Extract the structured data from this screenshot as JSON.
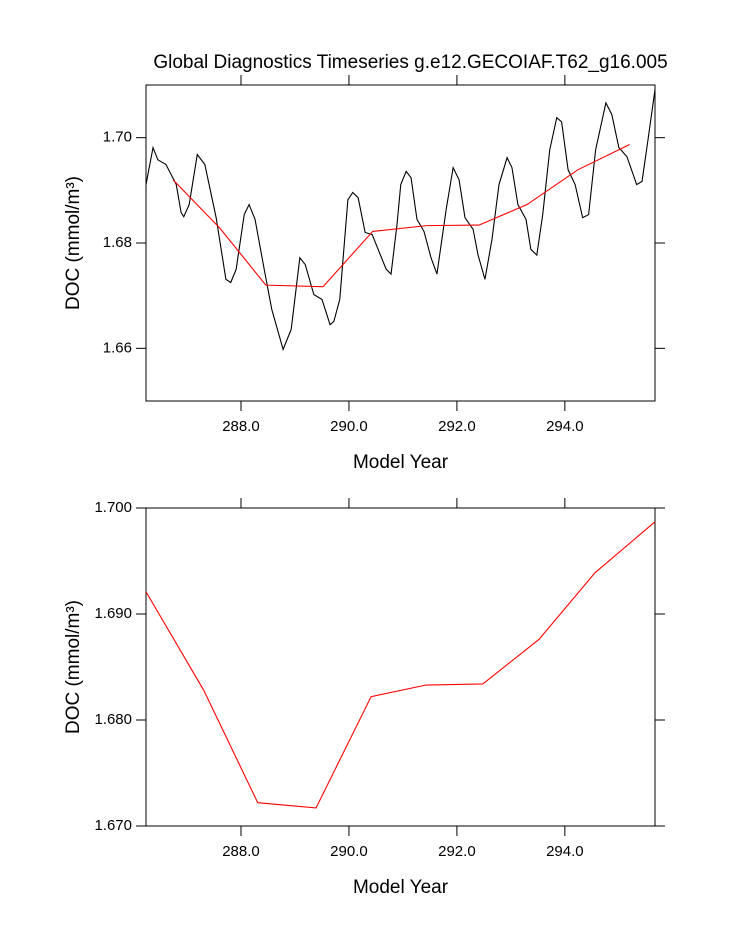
{
  "chart_data": [
    {
      "type": "line",
      "title": "Global Diagnostics Timeseries g.e12.GECOIAF.T62_g16.005",
      "xlabel": "Model Year",
      "ylabel": "DOC (mmol/m³)",
      "xlim": [
        286.24,
        295.67
      ],
      "ylim": [
        1.65,
        1.71
      ],
      "xticks": [
        {
          "value": 288,
          "label": "288.0"
        },
        {
          "value": 290,
          "label": "290.0"
        },
        {
          "value": 292,
          "label": "292.0"
        },
        {
          "value": 294,
          "label": "294.0"
        }
      ],
      "yticks": [
        {
          "value": 1.7,
          "label": "1.70"
        },
        1.68,
        1.66
      ],
      "lines": [
        {
          "color": "#000000",
          "x": [
            286.24,
            286.37,
            286.46,
            286.61,
            286.8,
            286.89,
            286.94,
            287.04,
            287.19,
            287.33,
            287.54,
            287.72,
            287.81,
            287.91,
            288.06,
            288.15,
            288.26,
            288.43,
            288.57,
            288.78,
            288.93,
            289.09,
            289.19,
            289.35,
            289.5,
            289.65,
            289.72,
            289.83,
            289.98,
            290.07,
            290.17,
            290.3,
            290.43,
            290.54,
            290.69,
            290.78,
            290.89,
            290.96,
            291.06,
            291.15,
            291.26,
            291.39,
            291.52,
            291.63,
            291.8,
            291.93,
            292.04,
            292.15,
            292.3,
            292.39,
            292.52,
            292.65,
            292.78,
            292.93,
            293.02,
            293.13,
            293.28,
            293.37,
            293.48,
            293.59,
            293.72,
            293.85,
            293.94,
            294.06,
            294.19,
            294.33,
            294.44,
            294.57,
            294.76,
            294.87,
            295.0,
            295.15,
            295.33,
            295.43,
            295.54,
            295.67
          ],
          "values": [
            1.6911,
            1.6981,
            1.6958,
            1.6949,
            1.6911,
            1.6858,
            1.685,
            1.6873,
            1.6968,
            1.6949,
            1.6848,
            1.6731,
            1.6725,
            1.675,
            1.6854,
            1.6873,
            1.6845,
            1.675,
            1.6674,
            1.6598,
            1.6636,
            1.6772,
            1.6759,
            1.6702,
            1.6693,
            1.6645,
            1.6651,
            1.6693,
            1.6882,
            1.6896,
            1.6886,
            1.682,
            1.6816,
            1.6788,
            1.675,
            1.6741,
            1.6835,
            1.6911,
            1.6936,
            1.6924,
            1.6845,
            1.6822,
            1.6772,
            1.6741,
            1.6863,
            1.6943,
            1.692,
            1.6848,
            1.6826,
            1.6778,
            1.6731,
            1.6807,
            1.6911,
            1.6962,
            1.6943,
            1.6873,
            1.6845,
            1.6788,
            1.6777,
            1.6854,
            1.6977,
            1.7038,
            1.703,
            1.6939,
            1.6911,
            1.6848,
            1.6854,
            1.6977,
            1.7066,
            1.7044,
            1.6981,
            1.6964,
            1.6911,
            1.6917,
            1.6996,
            1.7091
          ]
        },
        {
          "color": "#ff0000",
          "x": [
            286.74,
            287.61,
            288.46,
            289.52,
            290.44,
            291.44,
            292.41,
            293.3,
            294.24,
            295.2
          ],
          "values": [
            1.692,
            1.6828,
            1.672,
            1.6717,
            1.6822,
            1.6833,
            1.6834,
            1.6873,
            1.6939,
            1.6987
          ]
        }
      ]
    },
    {
      "type": "line",
      "xlabel": "Model Year",
      "ylabel": "DOC (mmol/m³)",
      "xlim": [
        286.24,
        295.67
      ],
      "ylim": [
        1.67,
        1.7
      ],
      "xticks": [
        {
          "value": 288,
          "label": "288.0"
        },
        {
          "value": 290,
          "label": "290.0"
        },
        {
          "value": 292,
          "label": "292.0"
        },
        {
          "value": 294,
          "label": "294.0"
        }
      ],
      "yticks": [
        {
          "value": 1.7,
          "label": "1.700"
        },
        {
          "value": 1.69,
          "label": "1.690"
        },
        {
          "value": 1.68,
          "label": "1.680"
        },
        {
          "value": 1.67,
          "label": "1.670"
        }
      ],
      "lines": [
        {
          "color": "#ff0000",
          "x": [
            286.24,
            287.31,
            288.31,
            289.39,
            290.41,
            291.43,
            292.48,
            293.52,
            294.56,
            295.67
          ],
          "values": [
            1.6921,
            1.6828,
            1.6722,
            1.6717,
            1.6822,
            1.6833,
            1.6834,
            1.6876,
            1.6939,
            1.6987
          ]
        }
      ]
    }
  ]
}
